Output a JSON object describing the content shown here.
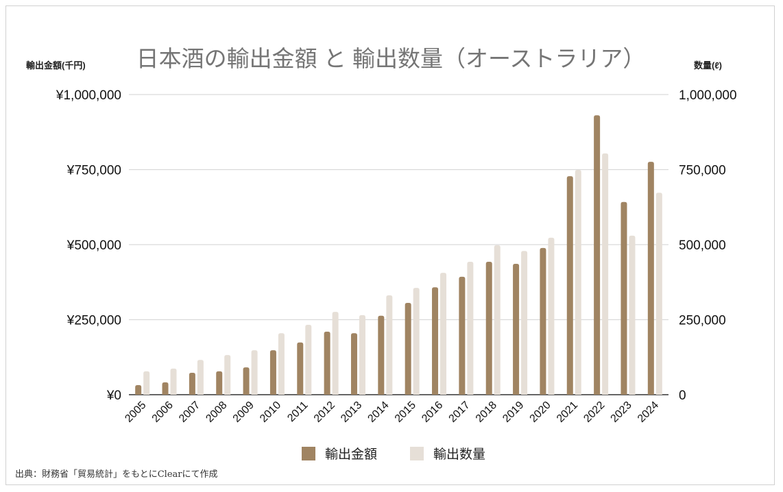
{
  "chart_data": {
    "type": "bar",
    "title": "日本酒の輸出金額 と 輸出数量（オーストラリア）",
    "ylabel_left": "輸出金額(千円)",
    "ylabel_right": "数量(ℓ)",
    "ylim": [
      0,
      1000000
    ],
    "yticks_left": [
      "¥0",
      "¥250,000",
      "¥500,000",
      "¥750,000",
      "¥1,000,000"
    ],
    "yticks_right": [
      "0",
      "250,000",
      "500,000",
      "750,000",
      "1,000,000"
    ],
    "grid": true,
    "legend": "bottom",
    "categories": [
      "2005",
      "2006",
      "2007",
      "2008",
      "2009",
      "2010",
      "2011",
      "2012",
      "2013",
      "2014",
      "2015",
      "2016",
      "2017",
      "2018",
      "2019",
      "2020",
      "2021",
      "2022",
      "2023",
      "2024"
    ],
    "series": [
      {
        "name": "輸出金額",
        "color": "#a08462",
        "axis": "left",
        "values": [
          32000,
          41000,
          73000,
          78000,
          91000,
          148000,
          174000,
          210000,
          205000,
          263000,
          306000,
          358000,
          393000,
          443000,
          436000,
          489000,
          728000,
          931000,
          642000,
          776000
        ]
      },
      {
        "name": "輸出数量",
        "color": "#e6dfd7",
        "axis": "right",
        "values": [
          78000,
          87000,
          116000,
          132000,
          148000,
          205000,
          233000,
          276000,
          265000,
          331000,
          356000,
          406000,
          443000,
          498000,
          479000,
          523000,
          749000,
          804000,
          530000,
          673000
        ]
      }
    ]
  },
  "source": "出典：財務省「貿易統計」をもとにClearにて作成"
}
